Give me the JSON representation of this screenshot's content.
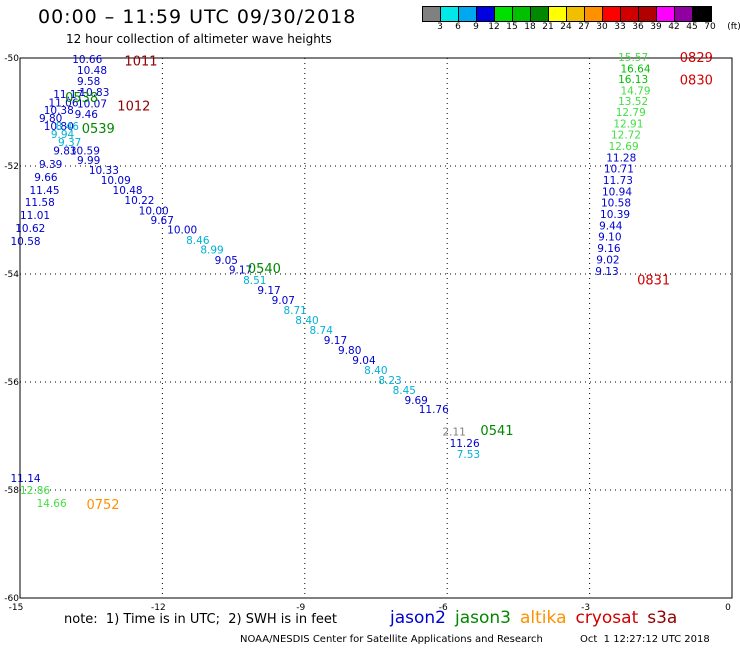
{
  "header": {
    "title": "00:00 – 11:59 UTC 09/30/2018",
    "subtitle": "12 hour collection of altimeter wave heights"
  },
  "color_scale": {
    "colors": [
      "#808080",
      "#00e8e8",
      "#00a8f0",
      "#0000e0",
      "#00e000",
      "#00c000",
      "#008800",
      "#ffff00",
      "#f0c000",
      "#ff9000",
      "#ff0000",
      "#d00000",
      "#b00000",
      "#ff00ff",
      "#9000a0",
      "#000000"
    ],
    "labels": [
      "3",
      "6",
      "9",
      "12",
      "15",
      "18",
      "21",
      "24",
      "27",
      "30",
      "33",
      "36",
      "39",
      "42",
      "45",
      "70",
      "(ft)"
    ]
  },
  "footer": {
    "note": "note:  1) Time is in UTC;  2) SWH is in feet",
    "satellites": [
      {
        "label": "jason2",
        "color": "#0000d0"
      },
      {
        "label": "jason3",
        "color": "#008800"
      },
      {
        "label": "altika",
        "color": "#ff9000"
      },
      {
        "label": "cryosat",
        "color": "#d00000"
      },
      {
        "label": "s3a",
        "color": "#900000"
      }
    ],
    "credit": "NOAA/NESDIS Center for Satellite Applications and Research",
    "timestamp": "Oct  1 12:27:12 UTC 2018"
  },
  "chart_data": {
    "type": "scatter",
    "xlim": [
      -15,
      0
    ],
    "ylim": [
      -60,
      -50
    ],
    "x_ticks": [
      -15,
      -12,
      -9,
      -6,
      -3,
      0
    ],
    "y_ticks": [
      -50,
      -52,
      -54,
      -56,
      -58,
      -60
    ],
    "grid": true,
    "points": [
      {
        "x": -13.9,
        "y": -50.02,
        "label": "10.66",
        "color": "#0000d0"
      },
      {
        "x": -13.8,
        "y": -50.22,
        "label": "10.48",
        "color": "#0000d0"
      },
      {
        "x": -13.8,
        "y": -50.43,
        "label": "9.58",
        "color": "#0000d0"
      },
      {
        "x": -13.75,
        "y": -50.63,
        "label": "10.83",
        "color": "#0000d0"
      },
      {
        "x": -13.8,
        "y": -50.84,
        "label": "10.07",
        "color": "#0000d0"
      },
      {
        "x": -13.85,
        "y": -51.04,
        "label": "9.46",
        "color": "#0000d0"
      },
      {
        "x": -14.3,
        "y": -50.67,
        "label": "11.17",
        "color": "#0000d0"
      },
      {
        "x": -14.4,
        "y": -50.82,
        "label": "11.06",
        "color": "#0000d0"
      },
      {
        "x": -14.5,
        "y": -50.96,
        "label": "10.38",
        "color": "#0000d0"
      },
      {
        "x": -14.6,
        "y": -51.11,
        "label": "9.80",
        "color": "#0000d0"
      },
      {
        "x": -14.5,
        "y": -51.26,
        "label": "10.80",
        "color": "#0000d0"
      },
      {
        "x": -14.25,
        "y": -51.26,
        "label": "8.46",
        "color": "#00b0d8"
      },
      {
        "x": -14.35,
        "y": -51.41,
        "label": "9.94",
        "color": "#00b0d8"
      },
      {
        "x": -14.2,
        "y": -51.56,
        "label": "9.37",
        "color": "#00b0d8"
      },
      {
        "x": -14.3,
        "y": -51.71,
        "label": "9.83",
        "color": "#0000d0"
      },
      {
        "x": -13.95,
        "y": -51.71,
        "label": "10.59",
        "color": "#0000d0"
      },
      {
        "x": -14.6,
        "y": -51.96,
        "label": "9.39",
        "color": "#0000d0"
      },
      {
        "x": -14.7,
        "y": -52.2,
        "label": "9.66",
        "color": "#0000d0"
      },
      {
        "x": -14.8,
        "y": -52.44,
        "label": "11.45",
        "color": "#0000d0"
      },
      {
        "x": -14.9,
        "y": -52.67,
        "label": "11.58",
        "color": "#0000d0"
      },
      {
        "x": -15.0,
        "y": -52.91,
        "label": "11.01",
        "color": "#0000d0"
      },
      {
        "x": -15.1,
        "y": -53.15,
        "label": "10.62",
        "color": "#0000d0"
      },
      {
        "x": -15.2,
        "y": -53.39,
        "label": "10.58",
        "color": "#0000d0"
      },
      {
        "x": -13.8,
        "y": -51.89,
        "label": "9.99",
        "color": "#0000d0"
      },
      {
        "x": -13.55,
        "y": -52.07,
        "label": "10.33",
        "color": "#0000d0"
      },
      {
        "x": -13.3,
        "y": -52.26,
        "label": "10.09",
        "color": "#0000d0"
      },
      {
        "x": -13.05,
        "y": -52.44,
        "label": "10.48",
        "color": "#0000d0"
      },
      {
        "x": -12.8,
        "y": -52.63,
        "label": "10.22",
        "color": "#0000d0"
      },
      {
        "x": -12.5,
        "y": -52.82,
        "label": "10.00",
        "color": "#0000d0"
      },
      {
        "x": -12.25,
        "y": -53.0,
        "label": "9.67",
        "color": "#0000d0"
      },
      {
        "x": -11.9,
        "y": -53.18,
        "label": "10.00",
        "color": "#0000d0"
      },
      {
        "x": -11.5,
        "y": -53.37,
        "label": "8.46",
        "color": "#00b0d8"
      },
      {
        "x": -11.2,
        "y": -53.55,
        "label": "8.99",
        "color": "#00b0d8"
      },
      {
        "x": -10.9,
        "y": -53.74,
        "label": "9.05",
        "color": "#0000d0"
      },
      {
        "x": -10.6,
        "y": -53.92,
        "label": "9.17",
        "color": "#0000d0"
      },
      {
        "x": -10.3,
        "y": -54.11,
        "label": "8.51",
        "color": "#00b0d8"
      },
      {
        "x": -10.0,
        "y": -54.3,
        "label": "9.17",
        "color": "#0000d0"
      },
      {
        "x": -9.7,
        "y": -54.48,
        "label": "9.07",
        "color": "#0000d0"
      },
      {
        "x": -9.45,
        "y": -54.67,
        "label": "8.71",
        "color": "#00b0d8"
      },
      {
        "x": -9.2,
        "y": -54.85,
        "label": "8.40",
        "color": "#00b0d8"
      },
      {
        "x": -8.9,
        "y": -55.04,
        "label": "8.74",
        "color": "#00b0d8"
      },
      {
        "x": -8.6,
        "y": -55.22,
        "label": "9.17",
        "color": "#0000d0"
      },
      {
        "x": -8.3,
        "y": -55.41,
        "label": "9.80",
        "color": "#0000d0"
      },
      {
        "x": -8.0,
        "y": -55.59,
        "label": "9.04",
        "color": "#0000d0"
      },
      {
        "x": -7.75,
        "y": -55.78,
        "label": "8.40",
        "color": "#00b0d8"
      },
      {
        "x": -7.45,
        "y": -55.96,
        "label": "8.23",
        "color": "#00b0d8"
      },
      {
        "x": -7.15,
        "y": -56.15,
        "label": "8.45",
        "color": "#00b0d8"
      },
      {
        "x": -6.9,
        "y": -56.33,
        "label": "9.69",
        "color": "#0000d0"
      },
      {
        "x": -6.6,
        "y": -56.5,
        "label": "11.76",
        "color": "#0000d0"
      },
      {
        "x": -6.1,
        "y": -56.92,
        "label": "2.11",
        "color": "#808080"
      },
      {
        "x": -5.95,
        "y": -57.13,
        "label": "11.26",
        "color": "#0000d0"
      },
      {
        "x": -5.8,
        "y": -57.33,
        "label": "7.53",
        "color": "#00b0d8"
      },
      {
        "x": -2.4,
        "y": -49.98,
        "label": "15.57",
        "color": "#44dd44"
      },
      {
        "x": -2.35,
        "y": -50.19,
        "label": "16.64",
        "color": "#00c000"
      },
      {
        "x": -2.4,
        "y": -50.39,
        "label": "16.13",
        "color": "#00c000"
      },
      {
        "x": -2.35,
        "y": -50.6,
        "label": "14.79",
        "color": "#44dd44"
      },
      {
        "x": -2.4,
        "y": -50.8,
        "label": "13.52",
        "color": "#44dd44"
      },
      {
        "x": -2.45,
        "y": -51.0,
        "label": "12.79",
        "color": "#44dd44"
      },
      {
        "x": -2.5,
        "y": -51.21,
        "label": "12.91",
        "color": "#44dd44"
      },
      {
        "x": -2.55,
        "y": -51.42,
        "label": "12.72",
        "color": "#44dd44"
      },
      {
        "x": -2.6,
        "y": -51.63,
        "label": "12.69",
        "color": "#44dd44"
      },
      {
        "x": -2.65,
        "y": -51.84,
        "label": "11.28",
        "color": "#0000d0"
      },
      {
        "x": -2.7,
        "y": -52.05,
        "label": "10.71",
        "color": "#0000d0"
      },
      {
        "x": -2.72,
        "y": -52.26,
        "label": "11.73",
        "color": "#0000d0"
      },
      {
        "x": -2.74,
        "y": -52.47,
        "label": "10.94",
        "color": "#0000d0"
      },
      {
        "x": -2.76,
        "y": -52.68,
        "label": "10.58",
        "color": "#0000d0"
      },
      {
        "x": -2.78,
        "y": -52.89,
        "label": "10.39",
        "color": "#0000d0"
      },
      {
        "x": -2.8,
        "y": -53.1,
        "label": "9.44",
        "color": "#0000d0"
      },
      {
        "x": -2.82,
        "y": -53.31,
        "label": "9.10",
        "color": "#0000d0"
      },
      {
        "x": -2.84,
        "y": -53.52,
        "label": "9.16",
        "color": "#0000d0"
      },
      {
        "x": -2.86,
        "y": -53.73,
        "label": "9.02",
        "color": "#0000d0"
      },
      {
        "x": -2.88,
        "y": -53.94,
        "label": "9.13",
        "color": "#0000d0"
      },
      {
        "x": -15.2,
        "y": -57.78,
        "label": "11.14",
        "color": "#0000d0"
      },
      {
        "x": -15.0,
        "y": -58.0,
        "label": "12.86",
        "color": "#44dd44"
      },
      {
        "x": -14.65,
        "y": -58.24,
        "label": "14.66",
        "color": "#44dd44"
      }
    ],
    "annotations": [
      {
        "x": -12.8,
        "y": -50.05,
        "text": "1011",
        "color": "#900000"
      },
      {
        "x": -14.05,
        "y": -50.72,
        "text": "0538",
        "color": "#008800"
      },
      {
        "x": -12.95,
        "y": -50.88,
        "text": "1012",
        "color": "#900000"
      },
      {
        "x": -13.7,
        "y": -51.3,
        "text": "0539",
        "color": "#008800"
      },
      {
        "x": -10.2,
        "y": -53.89,
        "text": "0540",
        "color": "#008800"
      },
      {
        "x": -5.3,
        "y": -56.89,
        "text": "0541",
        "color": "#008800"
      },
      {
        "x": -1.1,
        "y": -49.98,
        "text": "0829",
        "color": "#d00000"
      },
      {
        "x": -1.1,
        "y": -50.4,
        "text": "0830",
        "color": "#d00000"
      },
      {
        "x": -2.0,
        "y": -54.1,
        "text": "0831",
        "color": "#d00000"
      },
      {
        "x": -13.6,
        "y": -58.26,
        "text": "0752",
        "color": "#ff9000"
      }
    ]
  }
}
